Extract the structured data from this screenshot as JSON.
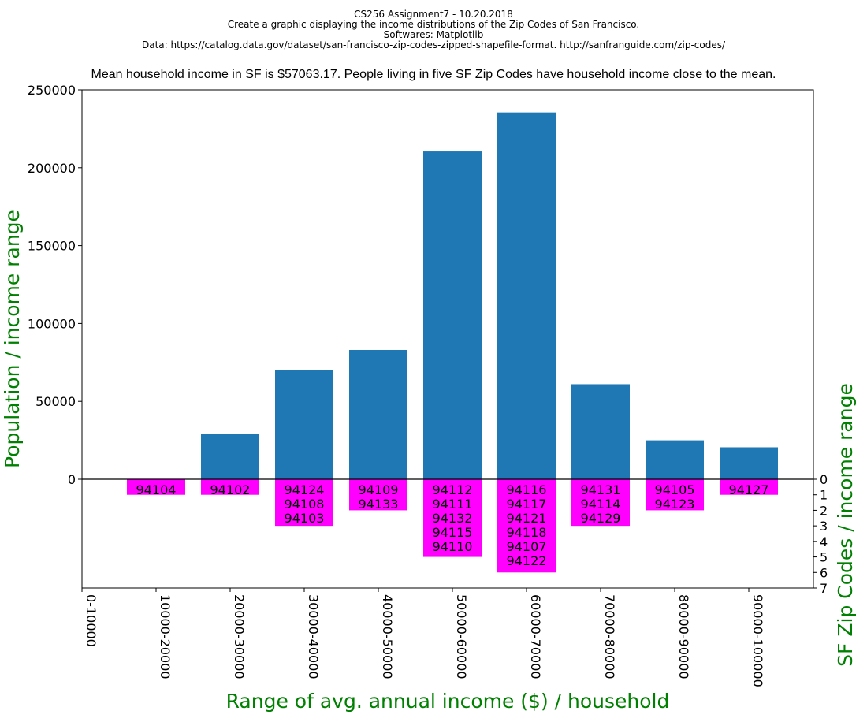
{
  "header": {
    "lines": [
      "CS256 Assignment7 - 10.20.2018",
      "Create a graphic displaying the income distributions of the Zip Codes of San Francisco.",
      "Softwares: Matplotlib",
      "Data: https://catalog.data.gov/dataset/san-francisco-zip-codes-zipped-shapefile-format. http://sanfranguide.com/zip-codes/"
    ]
  },
  "chart_data": {
    "type": "bar",
    "title": "Mean household income in SF is $57063.17. People living in five SF Zip Codes have household income close to the mean.",
    "xlabel": "Range of avg. annual income ($) / household",
    "ylabel": "Population / income range",
    "ylabel_right": "SF Zip Codes / income range",
    "categories": [
      "0-10000",
      "10000-20000",
      "20000-30000",
      "30000-40000",
      "40000-50000",
      "50000-60000",
      "60000-70000",
      "70000-80000",
      "80000-90000",
      "90000-100000"
    ],
    "population": [
      0,
      0,
      29000,
      70000,
      83000,
      210500,
      235500,
      61000,
      25000,
      20500
    ],
    "zip_codes": [
      [],
      [
        "94104"
      ],
      [
        "94102"
      ],
      [
        "94124",
        "94108",
        "94103"
      ],
      [
        "94109",
        "94133"
      ],
      [
        "94112",
        "94111",
        "94132",
        "94115",
        "94110"
      ],
      [
        "94116",
        "94117",
        "94121",
        "94118",
        "94107",
        "94122"
      ],
      [
        "94131",
        "94114",
        "94129"
      ],
      [
        "94105",
        "94123"
      ],
      [
        "94127"
      ]
    ],
    "ylim": [
      0,
      250000
    ],
    "yticks": [
      "0",
      "50000",
      "100000",
      "150000",
      "200000",
      "250000"
    ],
    "yticks_right": [
      "0",
      "1",
      "2",
      "3",
      "4",
      "5",
      "6",
      "7"
    ],
    "ylim_right": [
      0,
      7
    ],
    "colors": {
      "population_bar": "#1f77b4",
      "zip_bar": "#ff00ff",
      "axis_label": "#008000"
    },
    "grid": false
  }
}
